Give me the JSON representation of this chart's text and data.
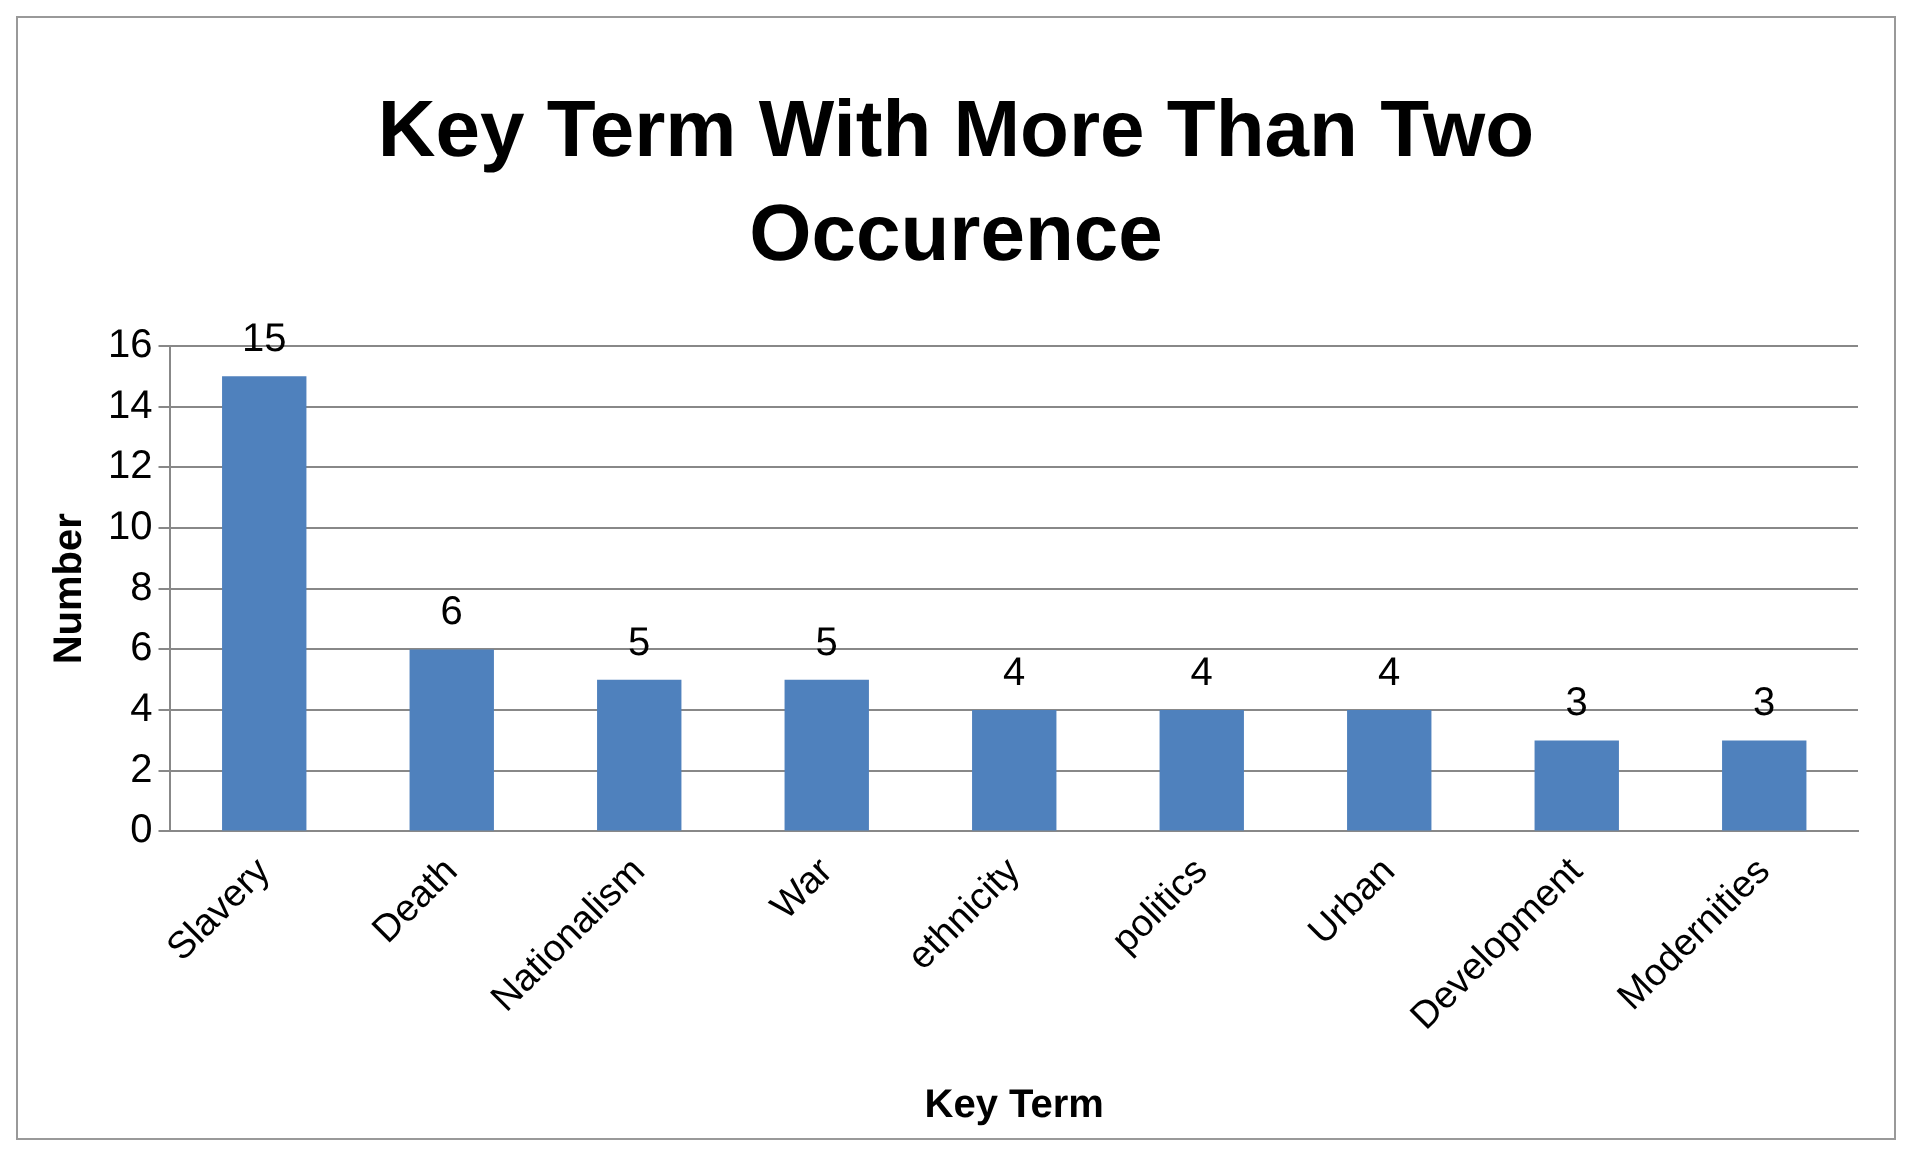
{
  "chart_data": {
    "type": "bar",
    "title": "Key Term With More Than Two Occurence",
    "xlabel": "Key Term",
    "ylabel": "Number",
    "categories": [
      "Slavery",
      "Death",
      "Nationalism",
      "War",
      "ethnicity",
      "politics",
      "Urban",
      "Development",
      "Modernities"
    ],
    "values": [
      15,
      6,
      5,
      5,
      4,
      4,
      4,
      3,
      3
    ],
    "color": "#4f81bd",
    "ylim": [
      0,
      16
    ],
    "yticks": [
      0,
      2,
      4,
      6,
      8,
      10,
      12,
      14,
      16
    ],
    "grid": "y",
    "data_labels": true,
    "legend": false
  }
}
